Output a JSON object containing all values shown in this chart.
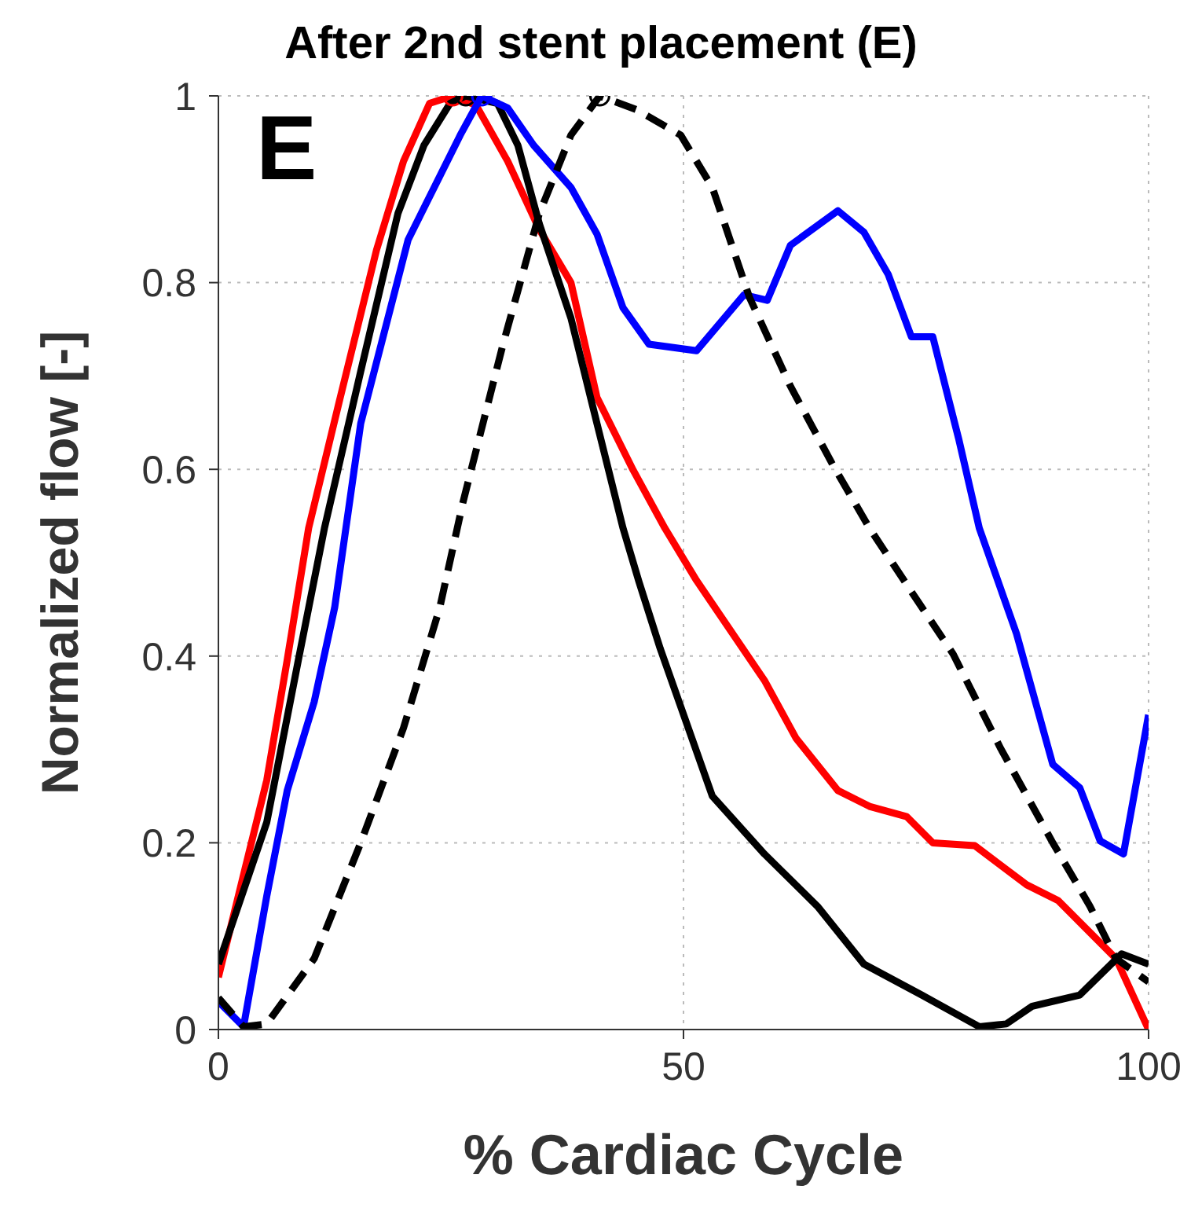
{
  "chart_data": {
    "type": "line",
    "title": "After 2nd stent placement (E)",
    "xlabel": "% Cardiac Cycle",
    "ylabel": "Normalized flow [-]",
    "annotations": [
      "E"
    ],
    "xlim": [
      0,
      100
    ],
    "xticks": [
      0,
      50,
      100
    ],
    "ylim": [
      0,
      1
    ],
    "yticks": [
      0,
      0.2,
      0.4,
      0.6,
      0.8,
      1
    ],
    "grid": true,
    "series": [
      {
        "color": "#ff0000",
        "line_style": "solid",
        "x": [
          0,
          5.2,
          7.4,
          9.7,
          13.1,
          17,
          19.9,
          22.7,
          25.2,
          27.7,
          31.1,
          34.5,
          37.9,
          40.7,
          44.6,
          48,
          51.4,
          58.7,
          62.1,
          66.6,
          70,
          74,
          76.8,
          81.3,
          86.9,
          90.3,
          96.5,
          100
        ],
        "values": [
          0.056,
          0.267,
          0.396,
          0.537,
          0.677,
          0.835,
          0.93,
          0.992,
          1,
          0.99,
          0.93,
          0.857,
          0.8,
          0.677,
          0.599,
          0.537,
          0.481,
          0.374,
          0.312,
          0.256,
          0.239,
          0.228,
          0.2,
          0.197,
          0.155,
          0.138,
          0.076,
          0
        ]
      },
      {
        "color": "#000000",
        "line_style": "solid",
        "x": [
          0,
          5.2,
          8.6,
          11.4,
          15.3,
          19.3,
          22.1,
          24.9,
          26.6,
          30,
          32.2,
          34.5,
          37.9,
          40.7,
          43.5,
          45.2,
          47.5,
          53.1,
          58.7,
          64.4,
          69.4,
          75.6,
          81.8,
          84.7,
          87.5,
          92.6,
          97.1,
          100
        ],
        "values": [
          0.07,
          0.222,
          0.396,
          0.537,
          0.705,
          0.874,
          0.947,
          0.992,
          1,
          0.992,
          0.947,
          0.863,
          0.762,
          0.649,
          0.537,
          0.48,
          0.408,
          0.25,
          0.188,
          0.132,
          0.07,
          0.037,
          0.003,
          0.006,
          0.025,
          0.037,
          0.081,
          0.07
        ]
      },
      {
        "color": "#0000ff",
        "line_style": "solid",
        "x": [
          0,
          2.7,
          5.2,
          7.4,
          10.3,
          12.5,
          15.3,
          20.4,
          23.2,
          26,
          28.3,
          31.1,
          33.9,
          37.9,
          40.7,
          43.5,
          46.3,
          51.4,
          56.5,
          59,
          61.5,
          66.6,
          69.4,
          72,
          74.5,
          76.8,
          79.6,
          81.8,
          85.8,
          89.7,
          92.6,
          94.8,
          97.3,
          100
        ],
        "values": [
          0.03,
          0.003,
          0.143,
          0.256,
          0.351,
          0.452,
          0.649,
          0.846,
          0.902,
          0.958,
          1,
          0.987,
          0.947,
          0.902,
          0.852,
          0.773,
          0.734,
          0.727,
          0.787,
          0.781,
          0.84,
          0.877,
          0.854,
          0.809,
          0.742,
          0.742,
          0.632,
          0.537,
          0.424,
          0.284,
          0.259,
          0.202,
          0.188,
          0.337
        ]
      },
      {
        "color": "#000000",
        "line_style": "dashed",
        "x": [
          0,
          2.7,
          5.2,
          10.3,
          15.3,
          19.9,
          23.8,
          26.3,
          30.6,
          34.5,
          37.9,
          41,
          45,
          49.7,
          53.1,
          57.1,
          61.5,
          66.1,
          70,
          74.5,
          79,
          84.1,
          89.7,
          93.7,
          96.5,
          100
        ],
        "values": [
          0.034,
          0.003,
          0.006,
          0.076,
          0.2,
          0.323,
          0.452,
          0.565,
          0.734,
          0.874,
          0.958,
          1,
          0.985,
          0.958,
          0.902,
          0.784,
          0.689,
          0.604,
          0.537,
          0.469,
          0.402,
          0.301,
          0.2,
          0.132,
          0.076,
          0.051
        ]
      },
      {
        "type": "scatter",
        "marker": "circle",
        "color": "#ff0000",
        "x": [
          25.2
        ],
        "values": [
          1
        ]
      },
      {
        "type": "scatter",
        "marker": "circle",
        "color": "#000000",
        "x": [
          26.6
        ],
        "values": [
          1
        ]
      },
      {
        "type": "scatter",
        "marker": "circle",
        "color": "#0000ff",
        "x": [
          28.3
        ],
        "values": [
          1
        ]
      },
      {
        "type": "scatter",
        "marker": "circle",
        "color": "#000000",
        "x": [
          41
        ],
        "values": [
          1
        ]
      }
    ]
  }
}
